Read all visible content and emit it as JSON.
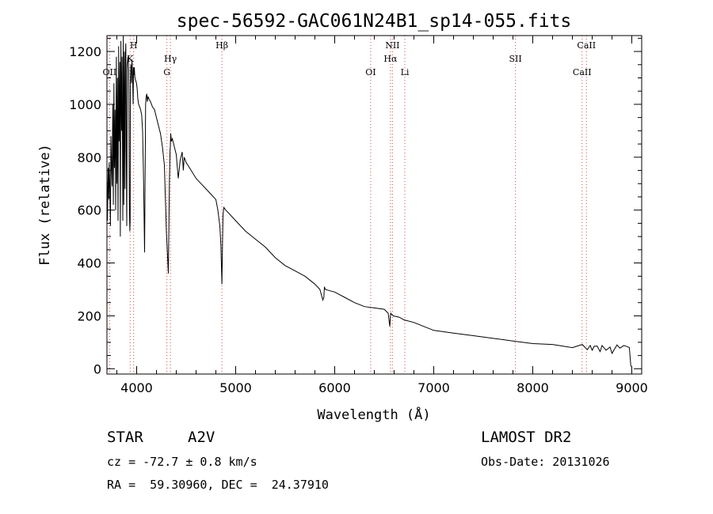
{
  "chart_data": {
    "type": "line",
    "title": "spec-56592-GAC061N24B1_sp14-055.fits",
    "xlabel": "Wavelength (Å)",
    "ylabel": "Flux (relative)",
    "xlim": [
      3700,
      9100
    ],
    "ylim": [
      -20,
      1260
    ],
    "xticks": [
      4000,
      5000,
      6000,
      7000,
      8000,
      9000
    ],
    "yticks": [
      0,
      200,
      400,
      600,
      800,
      1000,
      1200
    ],
    "spectrum": {
      "x": [
        3700,
        3705,
        3712,
        3718,
        3722,
        3728,
        3735,
        3740,
        3746,
        3752,
        3758,
        3765,
        3770,
        3776,
        3782,
        3788,
        3795,
        3800,
        3806,
        3812,
        3818,
        3823,
        3830,
        3835,
        3841,
        3848,
        3853,
        3860,
        3865,
        3870,
        3876,
        3882,
        3886,
        3890,
        3895,
        3900,
        3905,
        3912,
        3920,
        3926,
        3931,
        3934,
        3936,
        3941,
        3947,
        3952,
        3958,
        3965,
        3968,
        3971,
        3976,
        3982,
        3990,
        3998,
        4005,
        4012,
        4020,
        4030,
        4040,
        4050,
        4060,
        4070,
        4080,
        4090,
        4096,
        4102,
        4108,
        4115,
        4125,
        4140,
        4160,
        4180,
        4200,
        4220,
        4240,
        4260,
        4280,
        4300,
        4320,
        4330,
        4337,
        4340,
        4344,
        4350,
        4360,
        4380,
        4400,
        4420,
        4440,
        4460,
        4471,
        4480,
        4500,
        4550,
        4600,
        4650,
        4700,
        4750,
        4800,
        4820,
        4840,
        4850,
        4855,
        4861,
        4867,
        4872,
        4880,
        4900,
        4950,
        5000,
        5100,
        5200,
        5300,
        5400,
        5500,
        5600,
        5700,
        5800,
        5850,
        5880,
        5890,
        5896,
        5905,
        5950,
        6000,
        6100,
        6200,
        6300,
        6400,
        6500,
        6540,
        6556,
        6562,
        6566,
        6575,
        6590,
        6650,
        6700,
        6800,
        6900,
        7000,
        7200,
        7400,
        7600,
        7800,
        8000,
        8200,
        8400,
        8500,
        8550,
        8580,
        8600,
        8620,
        8650,
        8680,
        8700,
        8740,
        8780,
        8800,
        8850,
        8880,
        8920,
        8950,
        8975,
        8990,
        8995,
        9000
      ],
      "flux": [
        720,
        560,
        760,
        640,
        780,
        700,
        540,
        880,
        760,
        690,
        1000,
        620,
        1080,
        760,
        980,
        600,
        1180,
        700,
        1100,
        560,
        1220,
        860,
        1160,
        500,
        1240,
        900,
        1180,
        560,
        1270,
        620,
        1200,
        680,
        1180,
        1230,
        820,
        540,
        1150,
        1180,
        1130,
        620,
        520,
        560,
        1050,
        1150,
        1080,
        1170,
        1120,
        1000,
        1140,
        1110,
        1140,
        1100,
        1090,
        1080,
        1060,
        1020,
        1000,
        990,
        980,
        960,
        900,
        700,
        440,
        1000,
        1030,
        1040,
        1010,
        1030,
        1020,
        1010,
        990,
        980,
        950,
        920,
        890,
        840,
        770,
        520,
        360,
        700,
        820,
        840,
        890,
        860,
        870,
        840,
        810,
        720,
        790,
        820,
        750,
        800,
        780,
        750,
        720,
        700,
        680,
        660,
        640,
        600,
        540,
        470,
        400,
        320,
        480,
        580,
        610,
        600,
        580,
        560,
        520,
        490,
        460,
        420,
        390,
        370,
        350,
        320,
        300,
        260,
        270,
        310,
        300,
        295,
        290,
        270,
        250,
        235,
        230,
        225,
        210,
        160,
        200,
        210,
        205,
        200,
        195,
        185,
        175,
        160,
        145,
        135,
        125,
        115,
        105,
        95,
        92,
        80,
        92,
        72,
        88,
        70,
        85,
        86,
        65,
        88,
        70,
        82,
        58,
        90,
        78,
        88,
        84,
        80,
        10,
        10
      ]
    },
    "lines": [
      {
        "label": "OII",
        "wavelength": 3727,
        "row": 3
      },
      {
        "label": "K",
        "wavelength": 3934,
        "row": 2
      },
      {
        "label": "H",
        "wavelength": 3969,
        "row": 1
      },
      {
        "label": "Hγ",
        "wavelength": 4341,
        "row": 2
      },
      {
        "label": "G",
        "wavelength": 4305,
        "row": 3
      },
      {
        "label": "Hβ",
        "wavelength": 4861,
        "row": 1
      },
      {
        "label": "OI",
        "wavelength": 6363,
        "row": 3
      },
      {
        "label": "NII",
        "wavelength": 6583,
        "row": 1
      },
      {
        "label": "Hα",
        "wavelength": 6563,
        "row": 2
      },
      {
        "label": "Li",
        "wavelength": 6708,
        "row": 3
      },
      {
        "label": "SII",
        "wavelength": 7825,
        "row": 2
      },
      {
        "label": "CaII",
        "wavelength": 8542,
        "row": 1
      },
      {
        "label": "CaII",
        "wavelength": 8498,
        "row": 3
      }
    ],
    "colors": {
      "line": "#000000",
      "marker": "#d24a4a",
      "frame": "#000000"
    }
  },
  "info": {
    "obj_class": "STAR",
    "subclass": "A2V",
    "survey": "LAMOST DR2",
    "cz": "cz = -72.7 ± 0.8 km/s",
    "obs_date": "Obs-Date: 20131026",
    "coords": "RA =  59.30960, DEC =  24.37910"
  }
}
